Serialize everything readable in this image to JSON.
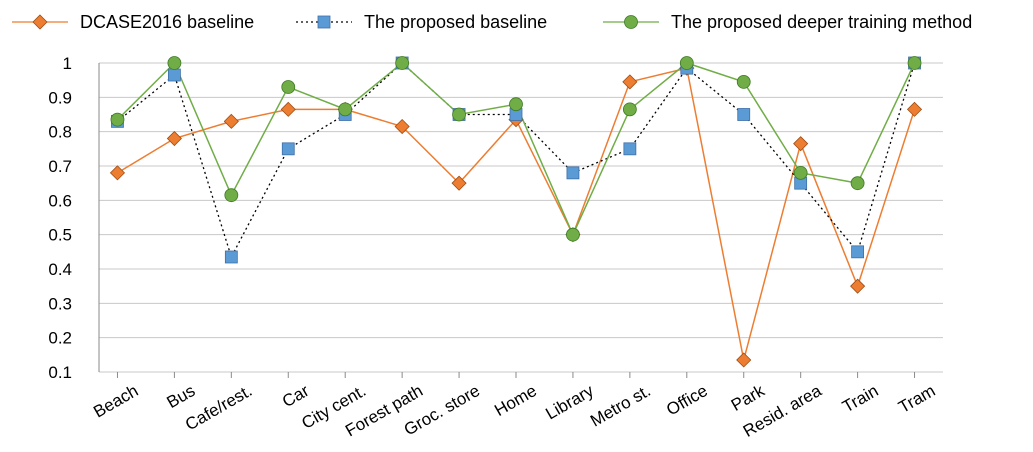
{
  "chart_data": {
    "type": "line",
    "categories": [
      "Beach",
      "Bus",
      "Cafe/rest.",
      "Car",
      "City cent.",
      "Forest path",
      "Groc. store",
      "Home",
      "Library",
      "Metro st.",
      "Office",
      "Park",
      "Resid. area",
      "Train",
      "Tram"
    ],
    "ylim": [
      0.1,
      1.0
    ],
    "yticks": [
      "0.1",
      "0.2",
      "0.3",
      "0.4",
      "0.5",
      "0.6",
      "0.7",
      "0.8",
      "0.9",
      "1"
    ],
    "grid": true,
    "legend_position": "top",
    "series": [
      {
        "name": "DCASE2016 baseline",
        "color": "#ed7d31",
        "stroke": "#ed7d31",
        "dash": "",
        "marker": "diamond",
        "values": [
          0.68,
          0.78,
          0.83,
          0.865,
          0.865,
          0.815,
          0.65,
          0.835,
          0.5,
          0.945,
          0.985,
          0.135,
          0.765,
          0.35,
          0.865
        ]
      },
      {
        "name": "The proposed baseline",
        "color": "#5b9bd5",
        "stroke": "#000000",
        "dash": "2,3",
        "marker": "square",
        "values": [
          0.83,
          0.965,
          0.435,
          0.75,
          0.85,
          1.0,
          0.85,
          0.85,
          0.68,
          0.75,
          0.985,
          0.85,
          0.65,
          0.45,
          1.0
        ]
      },
      {
        "name": "The proposed deeper training method",
        "color": "#70ad47",
        "stroke": "#70ad47",
        "dash": "",
        "marker": "circle",
        "values": [
          0.835,
          1.0,
          0.615,
          0.93,
          0.865,
          1.0,
          0.85,
          0.88,
          0.5,
          0.865,
          1.0,
          0.945,
          0.68,
          0.65,
          1.0
        ]
      }
    ]
  }
}
